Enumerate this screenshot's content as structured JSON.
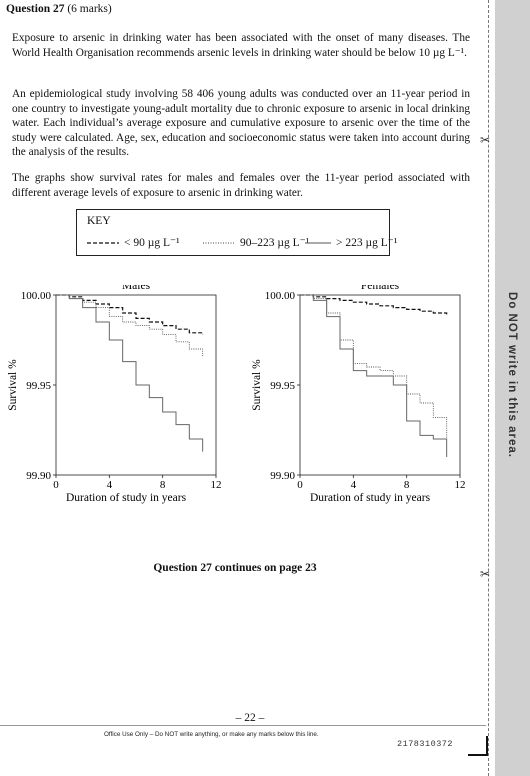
{
  "question": {
    "title": "Question 27",
    "marks": "(6 marks)"
  },
  "paragraphs": {
    "p1": "Exposure to arsenic in drinking water has been associated with the onset of many diseases. The World Health Organisation recommends arsenic levels in drinking water should be below 10 µg L⁻¹.",
    "p2": "An epidemiological study involving 58 406 young adults was conducted over an 11-year period in one country to investigate young-adult mortality due to chronic exposure to arsenic in local drinking water. Each individual’s average exposure and cumulative exposure to arsenic over the time of the study were calculated. Age, sex, education and socioeconomic status were taken into account during the analysis of the results.",
    "p3": "The graphs show survival rates for males and females over the 11-year period associated with different average levels of exposure to arsenic in drinking water."
  },
  "key": {
    "title": "KEY",
    "items": [
      "< 90 µg L⁻¹",
      "90–223 µg L⁻¹",
      "> 223 µg L⁻¹"
    ]
  },
  "chart_data": [
    {
      "type": "line",
      "title": "Males",
      "xlabel": "Duration of study in years",
      "ylabel": "Survival %",
      "xlim": [
        0,
        12
      ],
      "ylim": [
        99.9,
        100.0
      ],
      "xticks": [
        "0",
        "4",
        "8",
        "12"
      ],
      "yticks": [
        "99.90",
        "99.95",
        "100.00"
      ],
      "series": [
        {
          "name": "< 90 µg L⁻¹",
          "style": "dashed",
          "x": [
            0,
            1,
            2,
            3,
            4,
            5,
            6,
            7,
            8,
            9,
            10,
            11
          ],
          "y": [
            100.0,
            99.999,
            99.997,
            99.995,
            99.993,
            99.99,
            99.987,
            99.985,
            99.983,
            99.981,
            99.979,
            99.978
          ]
        },
        {
          "name": "90–223 µg L⁻¹",
          "style": "dotted",
          "x": [
            0,
            1,
            2,
            3,
            4,
            5,
            6,
            7,
            8,
            9,
            10,
            11
          ],
          "y": [
            100.0,
            99.998,
            99.996,
            99.993,
            99.988,
            99.985,
            99.983,
            99.981,
            99.978,
            99.974,
            99.97,
            99.966
          ]
        },
        {
          "name": "> 223 µg L⁻¹",
          "style": "solid",
          "x": [
            0,
            1,
            2,
            3,
            4,
            5,
            6,
            7,
            8,
            9,
            10,
            11
          ],
          "y": [
            100.0,
            99.998,
            99.993,
            99.985,
            99.975,
            99.963,
            99.95,
            99.943,
            99.935,
            99.928,
            99.92,
            99.913
          ]
        }
      ]
    },
    {
      "type": "line",
      "title": "Females",
      "xlabel": "Duration of study in years",
      "ylabel": "Survival %",
      "xlim": [
        0,
        12
      ],
      "ylim": [
        99.9,
        100.0
      ],
      "xticks": [
        "0",
        "4",
        "8",
        "12"
      ],
      "yticks": [
        "99.90",
        "99.95",
        "100.00"
      ],
      "series": [
        {
          "name": "< 90 µg L⁻¹",
          "style": "dashed",
          "x": [
            0,
            1,
            2,
            3,
            4,
            5,
            6,
            7,
            8,
            9,
            10,
            11
          ],
          "y": [
            100.0,
            99.999,
            99.998,
            99.997,
            99.996,
            99.995,
            99.994,
            99.993,
            99.992,
            99.991,
            99.99,
            99.989
          ]
        },
        {
          "name": "90–223 µg L⁻¹",
          "style": "dotted",
          "x": [
            0,
            1,
            2,
            3,
            4,
            5,
            6,
            7,
            8,
            9,
            10,
            11
          ],
          "y": [
            100.0,
            99.998,
            99.99,
            99.975,
            99.962,
            99.96,
            99.958,
            99.955,
            99.945,
            99.94,
            99.932,
            99.92
          ]
        },
        {
          "name": "> 223 µg L⁻¹",
          "style": "solid",
          "x": [
            0,
            1,
            2,
            3,
            4,
            5,
            6,
            7,
            8,
            9,
            10,
            11
          ],
          "y": [
            100.0,
            99.997,
            99.988,
            99.97,
            99.958,
            99.955,
            99.955,
            99.95,
            99.93,
            99.922,
            99.92,
            99.91
          ]
        }
      ]
    }
  ],
  "continues": "Question 27 continues on page 23",
  "footer": {
    "page_number": "– 22 –",
    "office_use": "Office Use Only – Do NOT write anything, or make any marks below this line.",
    "code": "2178310372"
  },
  "margin": {
    "text": "Do NOT write in this area."
  }
}
